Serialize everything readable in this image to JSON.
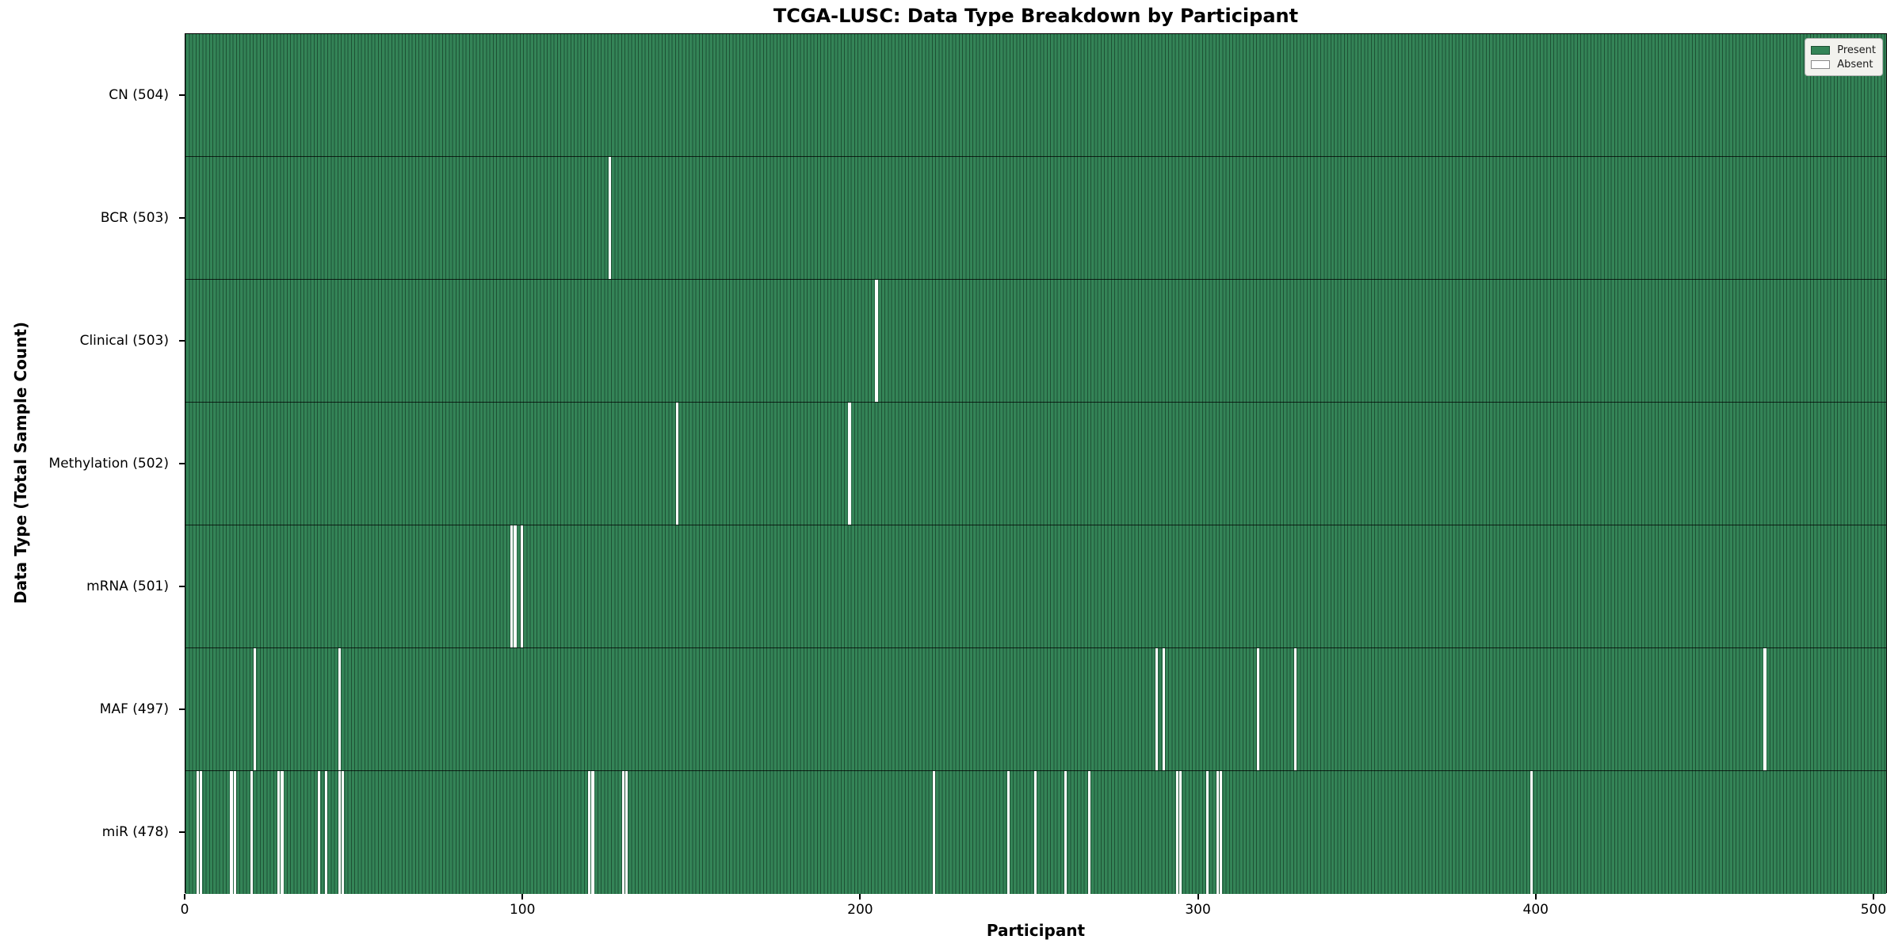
{
  "title": "TCGA-LUSC: Data Type Breakdown by Participant",
  "x_axis_label": "Participant",
  "y_axis_label": "Data Type (Total Sample Count)",
  "legend": {
    "present_label": "Present",
    "absent_label": "Absent"
  },
  "colors": {
    "present_fill": "#348457",
    "bar_edge": "#1d5134",
    "absent_fill": "#ffffff",
    "legend_bg": "#f2f2ee",
    "legend_border": "#b3b3b3"
  },
  "chart_data": {
    "type": "heatmap",
    "title": "TCGA-LUSC: Data Type Breakdown by Participant",
    "xlabel": "Participant",
    "ylabel": "Data Type (Total Sample Count)",
    "x_range": [
      0,
      504
    ],
    "x_ticks": [
      0,
      100,
      200,
      300,
      400,
      500
    ],
    "grid": false,
    "legend_position": "upper right",
    "legend_entries": [
      "Present",
      "Absent"
    ],
    "total_participants": 504,
    "rows": [
      {
        "label": "CN (504)",
        "data_type": "CN",
        "present_count": 504,
        "absent_participants": []
      },
      {
        "label": "BCR (503)",
        "data_type": "BCR",
        "present_count": 503,
        "absent_participants": [
          125
        ]
      },
      {
        "label": "Clinical (503)",
        "data_type": "Clinical",
        "present_count": 503,
        "absent_participants": [
          204
        ]
      },
      {
        "label": "Methylation (502)",
        "data_type": "Methylation",
        "present_count": 502,
        "absent_participants": [
          145,
          196
        ]
      },
      {
        "label": "mRNA (501)",
        "data_type": "mRNA",
        "present_count": 501,
        "absent_participants": [
          96,
          97,
          99
        ]
      },
      {
        "label": "MAF (497)",
        "data_type": "MAF",
        "present_count": 497,
        "absent_participants": [
          20,
          45,
          287,
          289,
          317,
          328,
          467
        ]
      },
      {
        "label": "miR (478)",
        "data_type": "miR",
        "present_count": 478,
        "absent_participants": [
          3,
          4,
          13,
          14,
          19,
          27,
          28,
          39,
          41,
          45,
          46,
          119,
          120,
          129,
          130,
          221,
          243,
          251,
          260,
          267,
          293,
          294,
          302,
          305,
          306,
          398
        ]
      }
    ]
  }
}
